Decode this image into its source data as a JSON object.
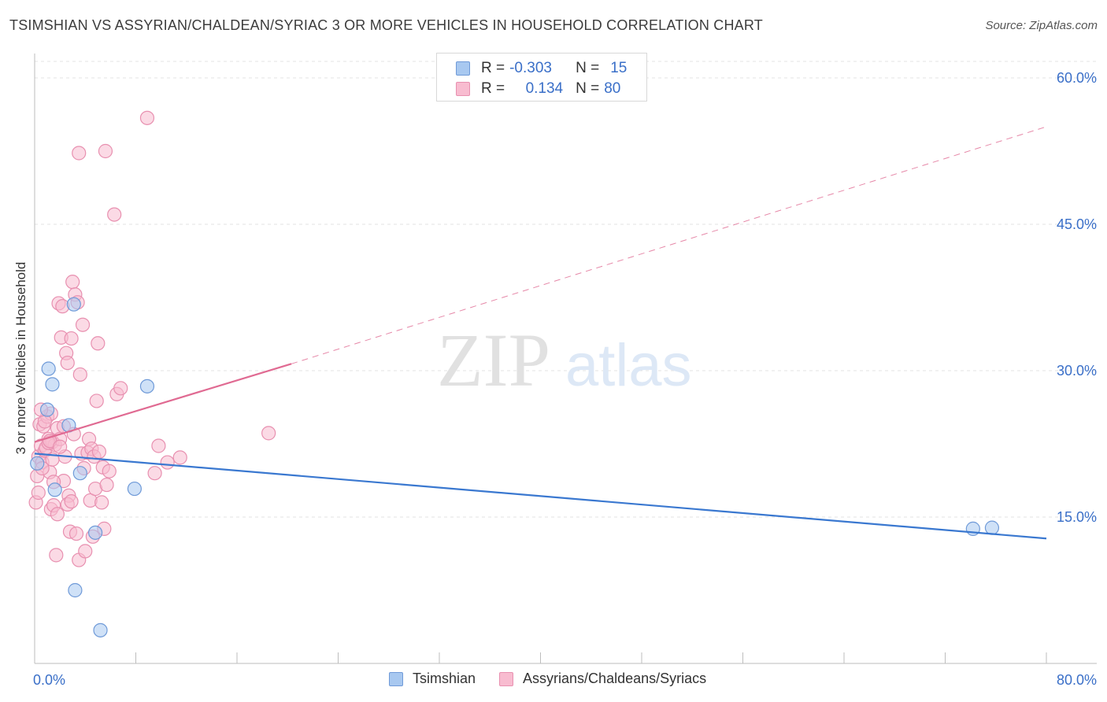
{
  "title": "TSIMSHIAN VS ASSYRIAN/CHALDEAN/SYRIAC 3 OR MORE VEHICLES IN HOUSEHOLD CORRELATION CHART",
  "source": "Source: ZipAtlas.com",
  "watermark": {
    "zip": "ZIP",
    "atlas": "atlas"
  },
  "legend_top": [
    {
      "r_label": "R =",
      "r_value": "-0.303",
      "n_label": "N =",
      "n_value": "15"
    },
    {
      "r_label": "R =",
      "r_value": "0.134",
      "n_label": "N =",
      "n_value": "80"
    }
  ],
  "colors": {
    "tsimshian_fill": "#a8c8f0",
    "tsimshian_stroke": "#6f9ad8",
    "tsimshian_line": "#3a78d0",
    "assyrian_fill": "#f8bcd0",
    "assyrian_stroke": "#e890b0",
    "assyrian_line": "#e06a92",
    "tick_label": "#3a6fc8",
    "grid": "#e3e3e3"
  },
  "chart_data": {
    "type": "scatter",
    "xlabel": "",
    "ylabel": "3 or more Vehicles in Household",
    "xlim": [
      0,
      80
    ],
    "ylim": [
      0,
      62.5
    ],
    "x_tick_labels": [
      "0.0%",
      "80.0%"
    ],
    "y_ticks": [
      15,
      30,
      45,
      60
    ],
    "y_tick_labels": [
      "15.0%",
      "30.0%",
      "45.0%",
      "60.0%"
    ],
    "series": [
      {
        "name": "Tsimshian",
        "r": -0.303,
        "n": 15,
        "points": [
          [
            0.2,
            20.5
          ],
          [
            1.0,
            26.0
          ],
          [
            1.1,
            30.2
          ],
          [
            1.4,
            28.6
          ],
          [
            1.6,
            17.8
          ],
          [
            2.7,
            24.4
          ],
          [
            3.1,
            36.8
          ],
          [
            3.2,
            7.5
          ],
          [
            3.6,
            19.5
          ],
          [
            4.8,
            13.4
          ],
          [
            5.2,
            3.4
          ],
          [
            7.9,
            17.9
          ],
          [
            8.9,
            28.4
          ],
          [
            74.2,
            13.8
          ],
          [
            75.7,
            13.9
          ]
        ],
        "trend": {
          "x": [
            0,
            80
          ],
          "y": [
            21.5,
            12.8
          ],
          "dashed_to": null
        }
      },
      {
        "name": "Assyrians/Chaldeans/Syriacs",
        "r": 0.134,
        "n": 80,
        "points": [
          [
            0.1,
            16.5
          ],
          [
            0.2,
            19.2
          ],
          [
            0.3,
            21.2
          ],
          [
            0.4,
            24.5
          ],
          [
            0.5,
            22.3
          ],
          [
            0.6,
            20.6
          ],
          [
            0.7,
            24.3
          ],
          [
            0.8,
            21.8
          ],
          [
            0.9,
            22.1
          ],
          [
            1.0,
            25.3
          ],
          [
            1.1,
            23.0
          ],
          [
            1.2,
            19.6
          ],
          [
            1.3,
            15.8
          ],
          [
            1.4,
            22.7
          ],
          [
            1.5,
            16.2
          ],
          [
            1.6,
            22.4
          ],
          [
            1.7,
            11.1
          ],
          [
            1.8,
            24.1
          ],
          [
            1.9,
            36.9
          ],
          [
            2.0,
            23.0
          ],
          [
            2.1,
            33.4
          ],
          [
            2.2,
            36.6
          ],
          [
            2.3,
            18.7
          ],
          [
            2.4,
            21.2
          ],
          [
            2.5,
            31.8
          ],
          [
            2.6,
            30.8
          ],
          [
            2.7,
            17.2
          ],
          [
            2.8,
            13.5
          ],
          [
            2.9,
            33.3
          ],
          [
            3.0,
            39.1
          ],
          [
            3.1,
            23.5
          ],
          [
            3.2,
            37.8
          ],
          [
            3.3,
            13.3
          ],
          [
            3.4,
            37.0
          ],
          [
            3.5,
            10.6
          ],
          [
            3.6,
            29.6
          ],
          [
            3.7,
            21.5
          ],
          [
            3.8,
            34.7
          ],
          [
            3.9,
            20.0
          ],
          [
            4.0,
            11.5
          ],
          [
            4.2,
            21.6
          ],
          [
            4.3,
            23.0
          ],
          [
            4.4,
            16.7
          ],
          [
            4.5,
            22.0
          ],
          [
            4.6,
            13.0
          ],
          [
            4.7,
            21.2
          ],
          [
            4.8,
            17.9
          ],
          [
            4.9,
            26.9
          ],
          [
            5.0,
            32.8
          ],
          [
            5.1,
            21.7
          ],
          [
            5.3,
            16.5
          ],
          [
            5.4,
            20.1
          ],
          [
            5.5,
            13.8
          ],
          [
            5.7,
            18.3
          ],
          [
            5.9,
            19.7
          ],
          [
            6.3,
            46.0
          ],
          [
            6.5,
            27.6
          ],
          [
            6.8,
            28.2
          ],
          [
            3.5,
            52.3
          ],
          [
            5.6,
            52.5
          ],
          [
            8.9,
            55.9
          ],
          [
            9.5,
            19.5
          ],
          [
            9.8,
            22.3
          ],
          [
            10.5,
            20.6
          ],
          [
            11.5,
            21.1
          ],
          [
            18.5,
            23.6
          ],
          [
            0.3,
            17.5
          ],
          [
            0.6,
            20.0
          ],
          [
            1.1,
            22.6
          ],
          [
            1.3,
            25.6
          ],
          [
            1.5,
            18.6
          ],
          [
            2.6,
            16.3
          ],
          [
            2.3,
            24.3
          ],
          [
            1.8,
            15.3
          ],
          [
            1.2,
            22.8
          ],
          [
            0.8,
            24.8
          ],
          [
            2.0,
            22.2
          ],
          [
            1.4,
            20.9
          ],
          [
            2.9,
            16.6
          ],
          [
            0.5,
            26.0
          ]
        ],
        "trend": {
          "x": [
            0,
            20.3
          ],
          "y": [
            22.7,
            30.7
          ],
          "dashed_to": [
            80,
            55.0
          ]
        }
      }
    ]
  }
}
